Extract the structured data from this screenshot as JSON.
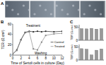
{
  "panel_labels": [
    "A",
    "B",
    "C"
  ],
  "chart_data": [
    {
      "type": "line",
      "ylabel": "TER (Ω.cm²)",
      "xlabel": "Time of Sertoli cells in culture (Day)",
      "annotations": [
        "Treatment",
        "Washing"
      ],
      "x": [
        0,
        1,
        2,
        3,
        4,
        5,
        6,
        7,
        8,
        10,
        12
      ],
      "series": [
        {
          "name": "Control",
          "color": "#222222",
          "marker": "circle",
          "values": [
            2,
            10,
            30,
            44,
            46,
            45,
            46,
            45,
            46,
            45,
            46
          ]
        },
        {
          "name": "Treated",
          "color": "#888888",
          "marker": "square",
          "values": [
            2,
            9,
            29,
            43,
            45,
            12,
            10,
            25,
            38,
            41,
            42
          ]
        }
      ],
      "xlim": [
        0,
        12
      ],
      "xticks": [
        0,
        2,
        4,
        6,
        8,
        10,
        12
      ],
      "ylim": [
        0,
        60
      ],
      "yticks": [
        0,
        20,
        40,
        60
      ],
      "legend": "lower right"
    },
    {
      "type": "bar",
      "ylabel": "TER (Ω.cm²)",
      "categories": [
        null,
        null,
        null,
        null,
        null
      ],
      "values": [
        45,
        44,
        46,
        43,
        45
      ],
      "color": "#999999",
      "ylim": [
        0,
        60
      ],
      "yticks": [
        0,
        50
      ],
      "tick_labels": "y"
    },
    {
      "type": "bar",
      "ylabel": "TER (Ω.cm²)",
      "categories": [
        null,
        null,
        null,
        null,
        null
      ],
      "values": [
        44,
        42,
        20,
        38,
        43
      ],
      "color": "#999999",
      "ylim": [
        0,
        60
      ],
      "yticks": [
        0,
        50
      ],
      "tick_labels": "y"
    }
  ]
}
